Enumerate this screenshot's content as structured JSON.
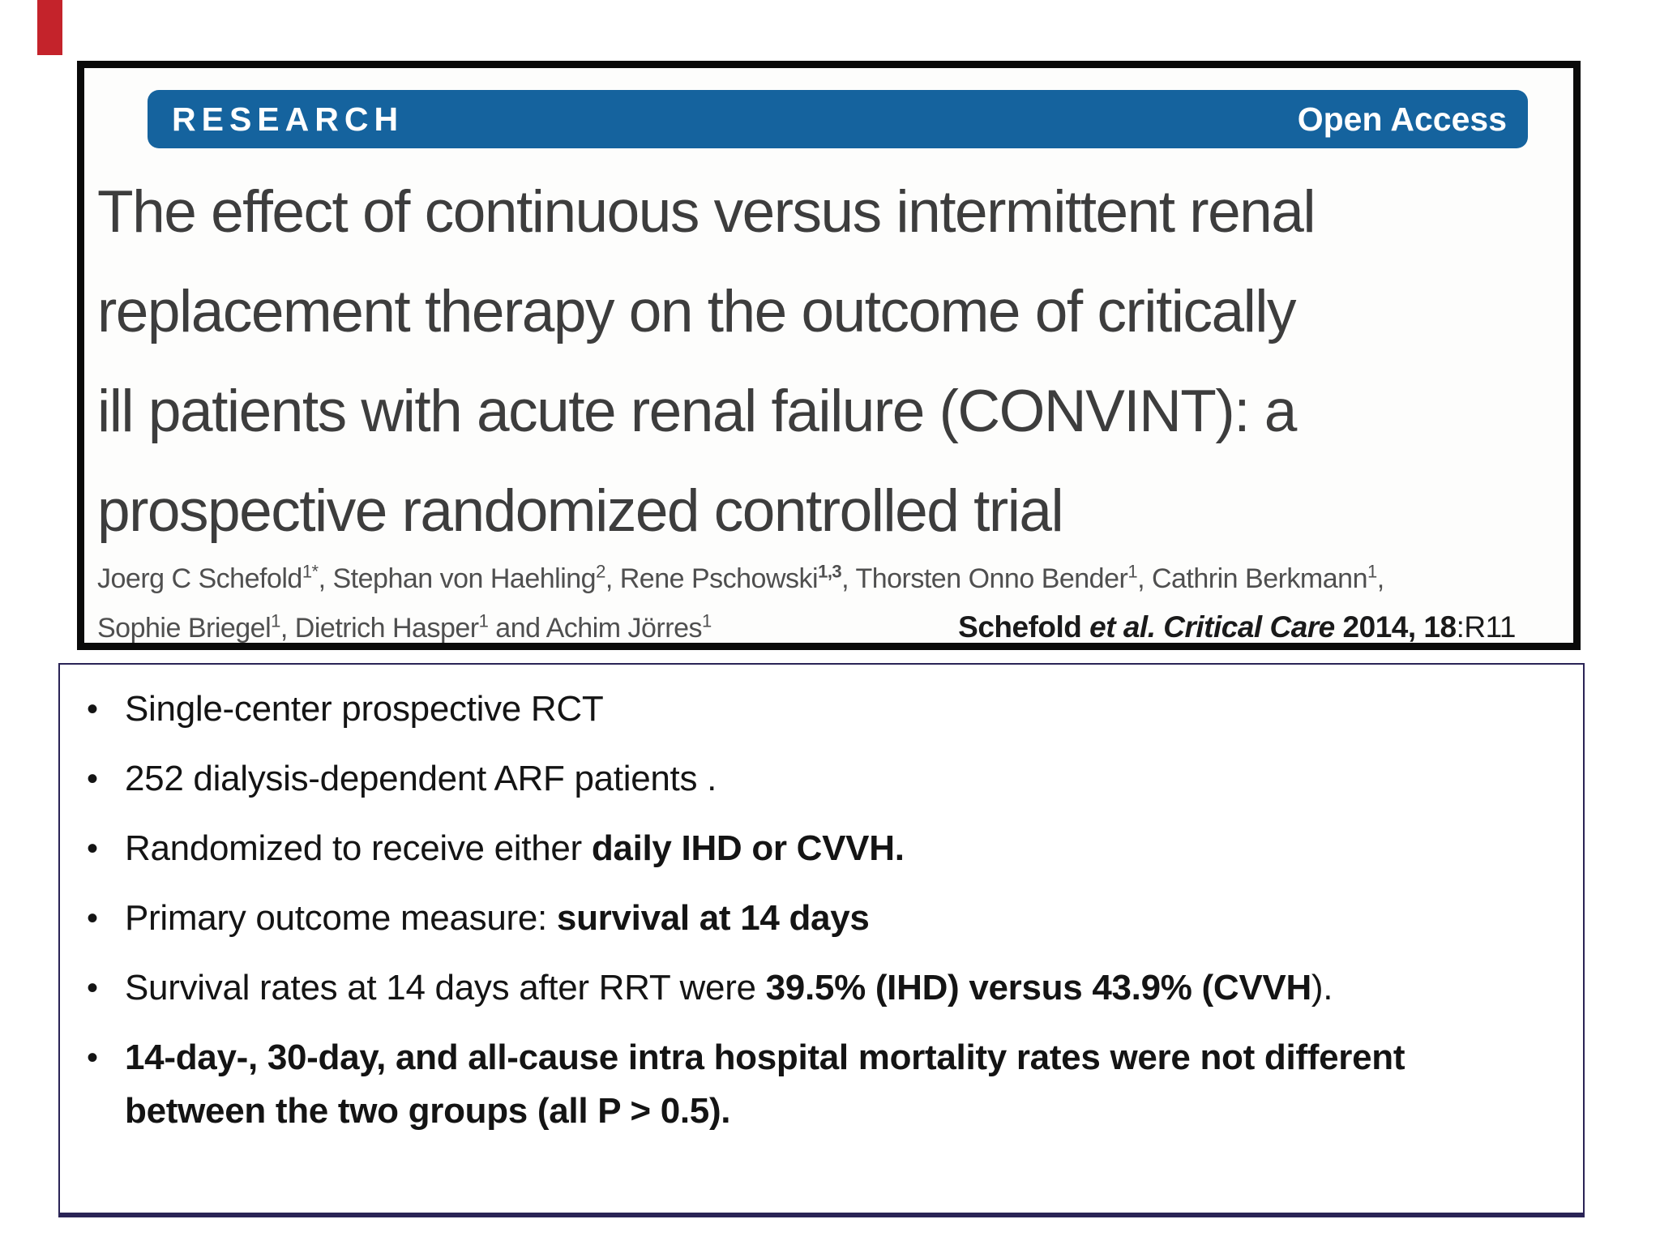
{
  "slide": {
    "bullet_char": "•",
    "accent_color": "#c4232b"
  },
  "paper": {
    "banner": {
      "label": "RESEARCH",
      "badge": "Open Access",
      "color": "#15639e"
    },
    "title_lines": [
      "The effect of continuous versus intermittent renal",
      "replacement therapy on the outcome of critically",
      "ill patients with acute renal failure (CONVINT): a",
      "prospective randomized controlled trial"
    ],
    "authors_line1": [
      {
        "t": "Joerg C Schefold"
      },
      {
        "t": "1*",
        "sup": true
      },
      {
        "t": ", Stephan von Haehling"
      },
      {
        "t": "2",
        "sup": true
      },
      {
        "t": ", Rene Pschowski"
      },
      {
        "t": "1,3",
        "sup": true,
        "b": true
      },
      {
        "t": ", Thorsten Onno Bender"
      },
      {
        "t": "1",
        "sup": true
      },
      {
        "t": ", Cathrin Berkmann"
      },
      {
        "t": "1",
        "sup": true
      },
      {
        "t": ","
      }
    ],
    "authors_line2": [
      {
        "t": "Sophie Briegel"
      },
      {
        "t": "1",
        "sup": true
      },
      {
        "t": ", Dietrich Hasper"
      },
      {
        "t": "1",
        "sup": true
      },
      {
        "t": " and Achim Jörres"
      },
      {
        "t": "1",
        "sup": true
      }
    ],
    "citation": [
      {
        "t": "Schefold ",
        "b": true
      },
      {
        "t": "et al. Critical Care ",
        "b": true,
        "i": true
      },
      {
        "t": "2014, ",
        "b": true
      },
      {
        "t": "18",
        "b": true
      },
      {
        "t": ":R11"
      }
    ]
  },
  "bullets": [
    {
      "segments": [
        {
          "t": "Single-center prospective RCT"
        }
      ]
    },
    {
      "segments": [
        {
          "t": "252 dialysis-dependent ARF patients ."
        }
      ]
    },
    {
      "segments": [
        {
          "t": "Randomized to receive either "
        },
        {
          "t": "daily IHD or CVVH.",
          "b": true
        }
      ]
    },
    {
      "segments": [
        {
          "t": "Primary outcome measure: "
        },
        {
          "t": "survival at 14 days",
          "b": true
        }
      ]
    },
    {
      "segments": [
        {
          "t": "Survival rates at 14 days after RRT were "
        },
        {
          "t": "39.5% (IHD) versus 43.9% (CVVH",
          "b": true
        },
        {
          "t": ")."
        }
      ]
    },
    {
      "segments": [
        {
          "t": "14-day-, 30-day, and all-cause intra hospital mortality rates were not different between the two groups (all P > 0.5).",
          "b": true
        }
      ]
    }
  ]
}
